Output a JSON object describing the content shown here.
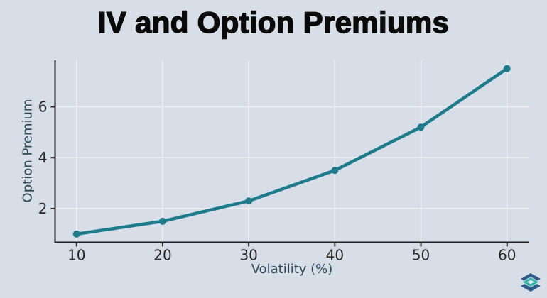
{
  "header": {
    "title": "IV and Option Premiums"
  },
  "chart_data": {
    "type": "line",
    "title": "IV and Option Premiums",
    "xlabel": "Volatility (%)",
    "ylabel": "Option Premium",
    "x": [
      10,
      20,
      30,
      40,
      50,
      60
    ],
    "series": [
      {
        "name": "Option Premium",
        "values": [
          1.0,
          1.5,
          2.3,
          3.5,
          5.2,
          7.5
        ]
      }
    ],
    "xticks": [
      10,
      20,
      30,
      40,
      50,
      60
    ],
    "yticks": [
      2,
      4,
      6
    ],
    "xlim": [
      7.5,
      62.5
    ],
    "ylim": [
      0.675,
      7.825
    ],
    "grid": true,
    "legend": false,
    "marker": "circle",
    "style": {
      "background": "#d8dee7",
      "line_color": "#1d7b8c",
      "grid_color": "#edf1f5",
      "spine_color": "#212121",
      "tick_label_color": "#262626",
      "axis_label_color": "#2c4856",
      "title_color": "#0a0a0a",
      "tick_font_size": 20,
      "line_width": 4.5,
      "marker_radius": 5
    }
  },
  "logo": {
    "name": "layered-diamonds-logo",
    "outer_color": "#2e5c8a",
    "middle_color": "#36b3a8",
    "center_color": "#e9eef3"
  }
}
